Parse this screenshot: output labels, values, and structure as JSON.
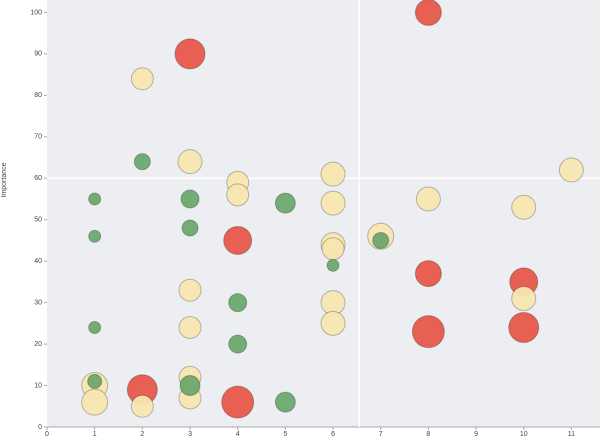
{
  "chart_data": {
    "type": "bubble",
    "y_label": "Importance",
    "xlim": [
      0,
      11.6
    ],
    "ylim": [
      0,
      103
    ],
    "xticks": [
      0,
      1,
      2,
      3,
      4,
      5,
      6,
      7,
      8,
      9,
      10,
      11
    ],
    "yticks": [
      0,
      10,
      20,
      30,
      40,
      50,
      60,
      70,
      80,
      90,
      100
    ],
    "reference_x": 6.55,
    "reference_y": 60,
    "series": [
      {
        "color": "#e8574a",
        "x": [
          3,
          8,
          4,
          2,
          4,
          8,
          8,
          10,
          10
        ],
        "values": [
          90,
          100,
          45,
          9,
          6,
          37,
          23,
          35,
          24
        ],
        "sizes": [
          15,
          13,
          14,
          15,
          16,
          13,
          16,
          14,
          15
        ]
      },
      {
        "color": "#f7e6b0",
        "x": [
          2,
          3,
          4,
          4,
          6,
          6,
          6,
          6,
          7,
          8,
          10,
          11,
          3,
          3,
          6,
          6,
          10,
          1,
          1,
          2,
          3,
          3
        ],
        "values": [
          84,
          64,
          59,
          56,
          61,
          54,
          44,
          43,
          46,
          55,
          53,
          62,
          33,
          24,
          30,
          25,
          31,
          10,
          6,
          5,
          12,
          7
        ],
        "sizes": [
          11,
          12,
          11,
          11,
          12,
          12,
          12,
          11,
          13,
          12,
          12,
          12,
          11,
          11,
          12,
          12,
          12,
          13,
          13,
          11,
          11,
          11
        ]
      },
      {
        "color": "#6ea86e",
        "x": [
          1,
          1,
          1,
          1,
          2,
          3,
          3,
          3,
          4,
          4,
          5,
          5,
          6,
          7
        ],
        "values": [
          55,
          46,
          24,
          11,
          64,
          55,
          48,
          10,
          30,
          20,
          54,
          6,
          39,
          45
        ],
        "sizes": [
          6,
          6,
          6,
          7,
          8,
          9,
          8,
          10,
          9,
          9,
          10,
          10,
          6,
          8
        ]
      }
    ]
  }
}
